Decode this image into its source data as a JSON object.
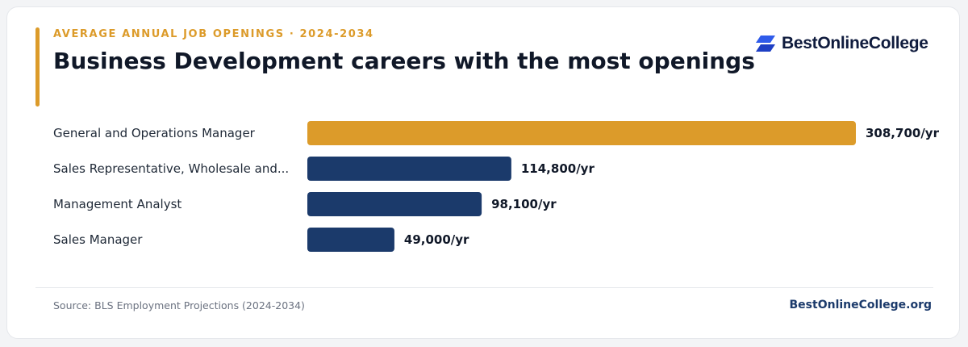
{
  "header": {
    "eyebrow": "AVERAGE ANNUAL JOB OPENINGS · 2024-2034",
    "title": "Business Development careers with the most openings"
  },
  "brand": {
    "logo_text": "BestOnlineCollege",
    "logo_icon": "stacked-parallelogram-icon",
    "site": "BestOnlineCollege.org"
  },
  "footer": {
    "source": "Source: BLS Employment Projections (2024-2034)"
  },
  "colors": {
    "accent": "#dc9b2a",
    "highlight_bar": "#dc9b2a",
    "bar": "#1b3a6b",
    "logo_blue": "#2f5bea"
  },
  "chart_data": {
    "type": "bar",
    "orientation": "horizontal",
    "categories": [
      "General and Operations Manager",
      "Sales Representative, Wholesale and...",
      "Management Analyst",
      "Sales Manager"
    ],
    "values": [
      308700,
      114800,
      98100,
      49000
    ],
    "value_labels": [
      "308,700/yr",
      "114,800/yr",
      "98,100/yr",
      "49,000/yr"
    ],
    "highlighted_index": 0,
    "xlim": [
      0,
      308700
    ],
    "grid": false,
    "legend": "none"
  }
}
